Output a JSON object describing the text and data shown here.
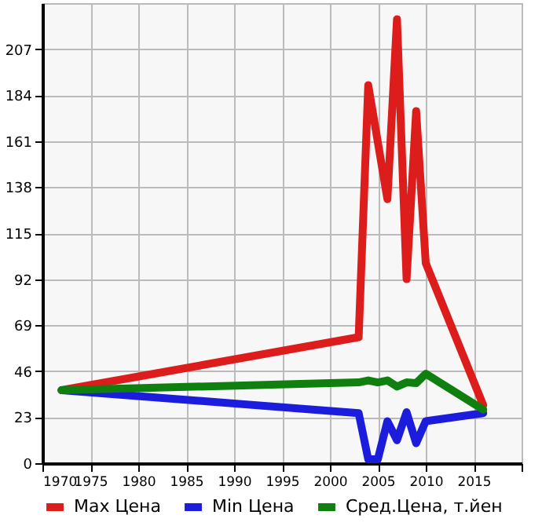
{
  "chart_data": {
    "type": "line",
    "series": [
      {
        "name": "Max Цена",
        "color": "#dd1c1c",
        "x": [
          1972,
          2003,
          2004,
          2006,
          2007,
          2008,
          2009,
          2010,
          2016
        ],
        "values": [
          36.5,
          63,
          189,
          132,
          222,
          92,
          176,
          100,
          29
        ]
      },
      {
        "name": "Min Цена",
        "color": "#1c1cdd",
        "x": [
          1972,
          2003,
          2004,
          2005,
          2006,
          2007,
          2008,
          2009,
          2010,
          2016
        ],
        "values": [
          36.5,
          25,
          2,
          2,
          21,
          11.5,
          25.5,
          10,
          21,
          25
        ]
      },
      {
        "name": "Сред.Цена, т.йен",
        "color": "#0f7f0f",
        "x": [
          1972,
          2003,
          2004,
          2005,
          2006,
          2007,
          2008,
          2009,
          2010,
          2016
        ],
        "values": [
          36.5,
          40.4,
          41.4,
          40.4,
          41.4,
          38.3,
          40.4,
          40,
          44.7,
          26.8
        ]
      }
    ],
    "xlim": [
      1970,
      2020
    ],
    "xticks": [
      1970,
      1975,
      1980,
      1985,
      1990,
      1995,
      2000,
      2005,
      2010,
      2015,
      {
        "value": 2020,
        "label": null
      }
    ],
    "ylim": [
      0,
      230
    ],
    "yticks": [
      0,
      23,
      46,
      69,
      92,
      115,
      138,
      161,
      184,
      207
    ],
    "grid": true,
    "legend": "bottom",
    "marker": "none",
    "line_style": "solid"
  }
}
